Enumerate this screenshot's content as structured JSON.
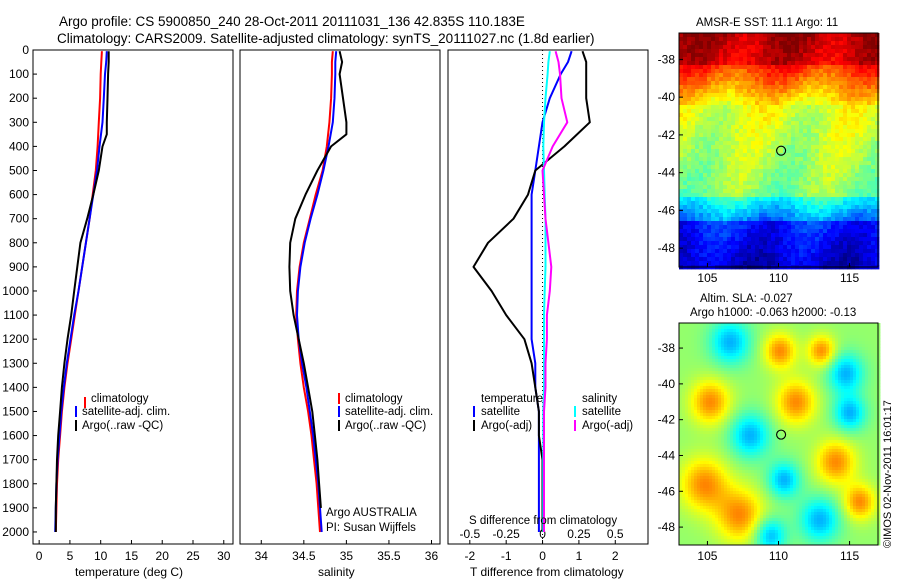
{
  "header": {
    "line1": "Argo profile: CS 5900850_240 28-Oct-2011 20111031_136 42.835S 110.183E",
    "line2": "Climatology: CARS2009. Satellite-adjusted climatology: synTS_20111027.nc (1.8d earlier)"
  },
  "colors": {
    "climatology": "#ff0000",
    "satellite": "#0000ff",
    "argo": "#000000",
    "salinity_satellite": "#00ffff",
    "salinity_argo": "#ff00ff"
  },
  "legend": {
    "climatology": "climatology",
    "satellite_adj": "satellite-adj. clim.",
    "argo": "Argo(..raw -QC)",
    "temperature_head": "temperature",
    "salinity_head": "salinity",
    "satellite": "satellite",
    "argo_adj": "Argo(-adj)"
  },
  "annotations": {
    "float_country": "Argo AUSTRALIA",
    "pi": "PI: Susan Wijffels",
    "s_diff_label": "S difference from climatology",
    "stamp": "©IMOS 02-Nov-2011 16:01:17"
  },
  "maps": {
    "sst_title": "AMSR-E SST: 11.1  Argo: 11",
    "sla_title_1": "Altim. SLA: -0.027",
    "sla_title_2": "Argo h1000: -0.063  h2000: -0.13",
    "lon_ticks": [
      "105",
      "110",
      "115"
    ],
    "lon_tick_values": [
      105,
      110,
      115
    ],
    "lat_ticks": [
      "-38",
      "-40",
      "-42",
      "-44",
      "-46",
      "-48"
    ],
    "lat_tick_values": [
      -38,
      -40,
      -42,
      -44,
      -46,
      -48
    ],
    "lon_range": [
      103,
      117
    ],
    "lat_range": [
      -49,
      -36.6
    ],
    "profile_location": {
      "lon": 110.183,
      "lat": -42.835
    },
    "palette": "jet"
  },
  "chart_data": [
    {
      "type": "line",
      "xlabel": "temperature (deg C)",
      "ylabel": "",
      "xlim": [
        -1,
        31.5
      ],
      "ylim": [
        2050,
        0
      ],
      "y_ticks": [
        0,
        100,
        200,
        300,
        400,
        500,
        600,
        700,
        800,
        900,
        1000,
        1100,
        1200,
        1300,
        1400,
        1500,
        1600,
        1700,
        1800,
        1900,
        2000
      ],
      "y_tick_labels": [
        "0",
        "100",
        "200",
        "300",
        "400",
        "500",
        "600",
        "700",
        "800",
        "900",
        "1000",
        "1100",
        "1200",
        "1300",
        "1400",
        "1500",
        "1600",
        "1700",
        "1800",
        "1900",
        "2000"
      ],
      "x_ticks": [
        0,
        5,
        10,
        15,
        20,
        25,
        30
      ],
      "x_tick_labels": [
        "0",
        "5",
        "10",
        "15",
        "20",
        "25",
        "30"
      ],
      "legend_position": "lower-right",
      "series": [
        {
          "name": "climatology",
          "color": "#ff0000",
          "x": [
            10.2,
            10.1,
            10.0,
            9.9,
            9.7,
            9.5,
            9.2,
            8.7,
            8.2,
            7.6,
            7.0,
            6.4,
            5.8,
            5.2,
            4.6,
            4.1,
            3.7,
            3.4,
            3.1,
            2.9,
            2.8,
            2.7
          ],
          "y": [
            5,
            50,
            100,
            200,
            300,
            400,
            500,
            600,
            700,
            800,
            900,
            1000,
            1100,
            1200,
            1300,
            1400,
            1500,
            1600,
            1700,
            1800,
            1900,
            2000
          ]
        },
        {
          "name": "satellite-adj. clim.",
          "color": "#0000ff",
          "x": [
            11.0,
            10.9,
            10.7,
            10.5,
            10.3,
            9.8,
            9.4,
            8.8,
            8.2,
            7.6,
            7.0,
            6.4,
            5.7,
            5.1,
            4.5,
            4.0,
            3.6,
            3.3,
            3.0,
            2.8,
            2.7,
            2.6
          ],
          "y": [
            5,
            50,
            100,
            200,
            300,
            400,
            500,
            600,
            700,
            800,
            900,
            1000,
            1100,
            1200,
            1300,
            1400,
            1500,
            1600,
            1700,
            1800,
            1900,
            2000
          ]
        },
        {
          "name": "Argo(..raw -QC)",
          "color": "#000000",
          "x": [
            11.3,
            11.3,
            11.2,
            11.1,
            11.0,
            11.0,
            10.3,
            9.7,
            8.8,
            7.8,
            6.7,
            6.2,
            5.7,
            5.2,
            4.6,
            4.1,
            3.7,
            3.4,
            3.1,
            2.9,
            2.8,
            2.7,
            2.7
          ],
          "y": [
            5,
            50,
            100,
            200,
            300,
            350,
            400,
            500,
            600,
            700,
            800,
            900,
            1000,
            1100,
            1200,
            1300,
            1400,
            1500,
            1600,
            1700,
            1800,
            1900,
            2000
          ]
        }
      ]
    },
    {
      "type": "line",
      "xlabel": "salinity",
      "ylabel": "",
      "xlim": [
        33.75,
        36.1
      ],
      "ylim": [
        2050,
        0
      ],
      "x_ticks": [
        34,
        34.5,
        35,
        35.5,
        36
      ],
      "x_tick_labels": [
        "34",
        "34.5",
        "35",
        "35.5",
        "36"
      ],
      "legend_position": "lower-right",
      "series": [
        {
          "name": "climatology",
          "color": "#ff0000",
          "x": [
            34.84,
            34.83,
            34.83,
            34.82,
            34.8,
            34.77,
            34.72,
            34.64,
            34.57,
            34.5,
            34.45,
            34.42,
            34.41,
            34.43,
            34.46,
            34.5,
            34.55,
            34.59,
            34.62,
            34.65,
            34.67,
            34.69
          ],
          "y": [
            5,
            50,
            100,
            200,
            300,
            400,
            500,
            600,
            700,
            800,
            900,
            1000,
            1100,
            1200,
            1300,
            1400,
            1500,
            1600,
            1700,
            1800,
            1900,
            2000
          ]
        },
        {
          "name": "satellite-adj. clim.",
          "color": "#0000ff",
          "x": [
            34.88,
            34.87,
            34.87,
            34.86,
            34.84,
            34.79,
            34.73,
            34.66,
            34.58,
            34.51,
            34.46,
            34.43,
            34.42,
            34.44,
            34.48,
            34.53,
            34.57,
            34.61,
            34.64,
            34.67,
            34.69,
            34.71
          ],
          "y": [
            5,
            50,
            100,
            200,
            300,
            400,
            500,
            600,
            700,
            800,
            900,
            1000,
            1100,
            1200,
            1300,
            1400,
            1500,
            1600,
            1700,
            1800,
            1900,
            2000
          ]
        },
        {
          "name": "Argo(..raw -QC)",
          "color": "#000000",
          "x": [
            34.92,
            34.95,
            34.92,
            34.96,
            34.98,
            35.0,
            35.0,
            34.82,
            34.66,
            34.52,
            34.4,
            34.34,
            34.33,
            34.34,
            34.38,
            34.44,
            34.5,
            34.55,
            34.6,
            34.63,
            34.66,
            34.68,
            34.7
          ],
          "y": [
            5,
            50,
            100,
            200,
            250,
            300,
            350,
            400,
            500,
            600,
            700,
            800,
            900,
            1000,
            1100,
            1200,
            1300,
            1400,
            1500,
            1600,
            1700,
            1800,
            1900
          ]
        }
      ]
    },
    {
      "type": "line",
      "xlabel": "T difference from climatology",
      "ylabel": "",
      "xlim": [
        -2.6,
        2.9
      ],
      "ylim": [
        2050,
        0
      ],
      "x_ticks": [
        -2,
        -1,
        0,
        1,
        2
      ],
      "x_tick_labels": [
        "-2",
        "-1",
        "0",
        "1",
        "2"
      ],
      "secondary_xlabel": "S difference from climatology",
      "secondary_x_ticks": [
        -0.5,
        -0.25,
        0,
        0.25,
        0.5
      ],
      "secondary_x_tick_labels": [
        "-0.5",
        "-0.25",
        "0",
        "0.25",
        "0.5"
      ],
      "secondary_x_scale": "x = 4 * S difference",
      "legend_position": "lower-center",
      "series": [
        {
          "name": "temperature satellite",
          "color": "#0000ff",
          "axis": "T",
          "x": [
            0.8,
            0.7,
            0.5,
            0.2,
            0.0,
            -0.1,
            -0.2,
            -0.3,
            -0.3,
            -0.3,
            -0.3,
            -0.3,
            -0.3,
            -0.3,
            -0.2,
            -0.2,
            -0.1,
            -0.1,
            -0.1,
            -0.1,
            -0.1,
            -0.1
          ],
          "y": [
            5,
            50,
            100,
            200,
            300,
            400,
            500,
            600,
            700,
            800,
            900,
            1000,
            1100,
            1200,
            1300,
            1400,
            1500,
            1600,
            1700,
            1800,
            1900,
            2000
          ]
        },
        {
          "name": "temperature Argo(-adj)",
          "color": "#000000",
          "axis": "T",
          "x": [
            1.1,
            1.2,
            1.2,
            1.2,
            1.3,
            0.6,
            -0.2,
            -0.4,
            -0.8,
            -1.5,
            -1.9,
            -1.4,
            -1.0,
            -0.5,
            -0.3,
            -0.2,
            -0.1,
            -0.1,
            0.0,
            0.0,
            0.0,
            0.0
          ],
          "y": [
            5,
            50,
            100,
            200,
            300,
            400,
            500,
            600,
            700,
            800,
            900,
            1000,
            1100,
            1200,
            1300,
            1400,
            1500,
            1600,
            1700,
            1800,
            1900,
            2000
          ]
        },
        {
          "name": "salinity satellite",
          "color": "#00ffff",
          "axis": "S",
          "x": [
            0.05,
            0.04,
            0.035,
            0.02,
            0.01,
            0.005,
            0.01,
            0.015,
            0.02,
            0.02,
            0.02,
            0.015,
            0.01,
            0.01,
            0.01,
            0.01,
            0.005,
            0.005,
            0.005,
            0.005,
            0.005,
            0.005
          ],
          "y": [
            5,
            50,
            100,
            200,
            300,
            400,
            500,
            600,
            700,
            800,
            900,
            1000,
            1100,
            1200,
            1300,
            1400,
            1500,
            1600,
            1700,
            1800,
            1900,
            2000
          ]
        },
        {
          "name": "salinity Argo(-adj)",
          "color": "#ff00ff",
          "axis": "S",
          "x": [
            0.09,
            0.11,
            0.12,
            0.13,
            0.17,
            0.07,
            0.0,
            0.01,
            0.02,
            0.04,
            0.06,
            0.05,
            0.03,
            0.03,
            0.02,
            0.02,
            0.01,
            0.01,
            0.01,
            0.01,
            0.01,
            0.01
          ],
          "y": [
            5,
            50,
            100,
            200,
            300,
            400,
            500,
            600,
            700,
            800,
            900,
            1000,
            1100,
            1200,
            1300,
            1400,
            1500,
            1600,
            1700,
            1800,
            1900,
            2000
          ]
        }
      ]
    }
  ]
}
